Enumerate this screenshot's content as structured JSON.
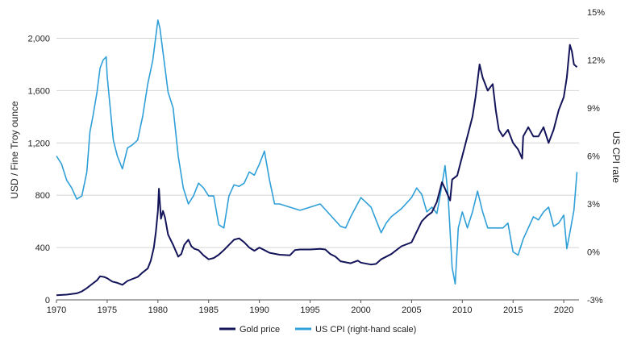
{
  "chart_data": {
    "type": "line",
    "title": "",
    "xlabel": "",
    "ylabel_left": "USD / Fine Troy ounce",
    "ylabel_right": "US CPI rate",
    "xlim": [
      1970,
      2021.5
    ],
    "ylim_left": [
      0,
      2200
    ],
    "ylim_right": [
      -3,
      15
    ],
    "x_ticks": [
      1970,
      1975,
      1980,
      1985,
      1990,
      1995,
      2000,
      2005,
      2010,
      2015,
      2020
    ],
    "x_tick_labels": [
      "1970",
      "1975",
      "1980",
      "1985",
      "1990",
      "1995",
      "2000",
      "2005",
      "2010",
      "2015",
      "2020"
    ],
    "y_left_ticks": [
      0,
      400,
      800,
      1200,
      1600,
      2000
    ],
    "y_left_tick_labels": [
      "0",
      "400",
      "800",
      "1,200",
      "1,600",
      "2,000"
    ],
    "y_right_ticks": [
      -3,
      0,
      3,
      6,
      9,
      12,
      15
    ],
    "y_right_tick_labels": [
      "-3%",
      "0%",
      "3%",
      "6%",
      "9%",
      "12%",
      "15%"
    ],
    "grid": "horizontal",
    "legend_position": "bottom",
    "series": [
      {
        "name": "Gold price",
        "axis": "left",
        "color": "#14145a",
        "x": [
          1970,
          1971,
          1972,
          1972.5,
          1973,
          1973.5,
          1974,
          1974.3,
          1974.7,
          1975,
          1975.5,
          1976,
          1976.5,
          1977,
          1977.5,
          1978,
          1978.5,
          1979,
          1979.3,
          1979.6,
          1979.8,
          1980,
          1980.1,
          1980.3,
          1980.5,
          1980.7,
          1981,
          1981.5,
          1982,
          1982.3,
          1982.6,
          1983,
          1983.3,
          1983.6,
          1984,
          1984.5,
          1985,
          1985.5,
          1986,
          1986.5,
          1987,
          1987.5,
          1988,
          1988.5,
          1989,
          1989.5,
          1990,
          1990.5,
          1991,
          1992,
          1993,
          1993.5,
          1994,
          1995,
          1996,
          1996.5,
          1997,
          1997.5,
          1998,
          1999,
          1999.7,
          2000,
          2001,
          2001.5,
          2002,
          2003,
          2004,
          2005,
          2006,
          2006.5,
          2007,
          2007.5,
          2008,
          2008.3,
          2008.8,
          2009,
          2009.5,
          2010,
          2010.5,
          2011,
          2011.3,
          2011.7,
          2012,
          2012.5,
          2013,
          2013.3,
          2013.6,
          2014,
          2014.5,
          2015,
          2015.5,
          2015.9,
          2016,
          2016.5,
          2017,
          2017.5,
          2018,
          2018.5,
          2019,
          2019.5,
          2020,
          2020.3,
          2020.6,
          2020.8,
          2021,
          2021.3
        ],
        "values": [
          35,
          40,
          50,
          65,
          90,
          120,
          150,
          180,
          175,
          165,
          140,
          130,
          115,
          145,
          160,
          175,
          210,
          240,
          300,
          400,
          520,
          680,
          850,
          620,
          680,
          630,
          500,
          420,
          330,
          350,
          420,
          460,
          410,
          390,
          380,
          340,
          310,
          320,
          345,
          380,
          420,
          460,
          470,
          440,
          400,
          375,
          400,
          380,
          360,
          345,
          340,
          380,
          385,
          385,
          390,
          385,
          350,
          330,
          295,
          280,
          300,
          285,
          270,
          275,
          310,
          350,
          410,
          440,
          600,
          640,
          670,
          750,
          900,
          850,
          760,
          920,
          950,
          1100,
          1250,
          1400,
          1550,
          1800,
          1700,
          1600,
          1650,
          1450,
          1300,
          1250,
          1300,
          1200,
          1150,
          1080,
          1250,
          1320,
          1250,
          1250,
          1320,
          1200,
          1300,
          1450,
          1550,
          1700,
          1950,
          1900,
          1800,
          1780
        ]
      },
      {
        "name": "US CPI (right-hand scale)",
        "axis": "right",
        "color": "#2f9fd8",
        "x": [
          1970,
          1970.5,
          1971,
          1971.5,
          1972,
          1972.5,
          1973,
          1973.3,
          1973.6,
          1974,
          1974.3,
          1974.6,
          1974.9,
          1975,
          1975.3,
          1975.6,
          1976,
          1976.5,
          1977,
          1977.5,
          1978,
          1978.5,
          1979,
          1979.5,
          1980,
          1980.2,
          1980.5,
          1980.8,
          1981,
          1981.5,
          1982,
          1982.5,
          1983,
          1983.5,
          1984,
          1984.5,
          1985,
          1985.5,
          1986,
          1986.5,
          1987,
          1987.5,
          1988,
          1988.5,
          1989,
          1989.5,
          1990,
          1990.5,
          1991,
          1991.5,
          1992,
          1993,
          1994,
          1995,
          1996,
          1997,
          1998,
          1998.5,
          1999,
          2000,
          2001,
          2001.5,
          2002,
          2002.5,
          2003,
          2004,
          2005,
          2005.5,
          2006,
          2006.5,
          2007,
          2007.5,
          2008,
          2008.3,
          2008.6,
          2009,
          2009.3,
          2009.6,
          2010,
          2010.5,
          2011,
          2011.5,
          2012,
          2012.5,
          2013,
          2014,
          2014.5,
          2015,
          2015.5,
          2016,
          2016.5,
          2017,
          2017.5,
          2018,
          2018.5,
          2019,
          2019.5,
          2020,
          2020.3,
          2020.6,
          2021,
          2021.3
        ],
        "values": [
          6,
          5.5,
          4.5,
          4,
          3.3,
          3.5,
          5,
          7.5,
          8.5,
          10,
          11.5,
          12,
          12.2,
          11,
          9,
          7,
          6,
          5.2,
          6.5,
          6.7,
          7,
          8.5,
          10.5,
          12,
          14.5,
          14,
          12.5,
          11,
          10,
          9,
          6,
          4,
          3,
          3.5,
          4.3,
          4,
          3.5,
          3.5,
          1.7,
          1.5,
          3.5,
          4.2,
          4.1,
          4.3,
          5,
          4.8,
          5.5,
          6.3,
          4.5,
          3,
          3,
          2.8,
          2.6,
          2.8,
          3,
          2.3,
          1.6,
          1.5,
          2.2,
          3.4,
          2.8,
          2,
          1.2,
          1.8,
          2.2,
          2.7,
          3.4,
          4,
          3.6,
          2.5,
          2.8,
          2.4,
          4.2,
          5.4,
          3.5,
          -1,
          -2,
          1.5,
          2.5,
          1.5,
          2.5,
          3.8,
          2.5,
          1.5,
          1.5,
          1.5,
          1.8,
          0,
          -0.2,
          0.8,
          1.5,
          2.2,
          2,
          2.5,
          2.8,
          1.6,
          1.8,
          2.3,
          0.2,
          1.2,
          2.6,
          5
        ]
      }
    ]
  }
}
